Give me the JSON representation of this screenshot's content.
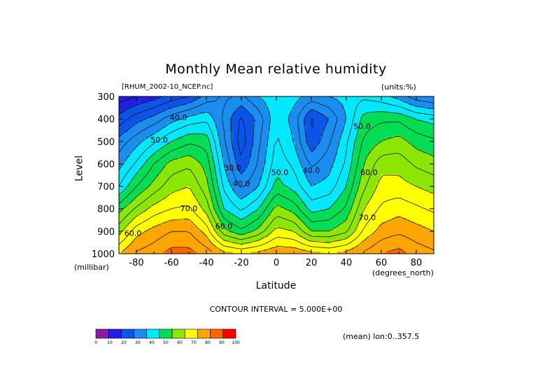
{
  "chart_data": {
    "type": "contour",
    "title": "Monthly Mean relative humidity",
    "dataset": "[RHUM_2002-10_NCEP.nc]",
    "units": "(units:%)",
    "xlabel": "Latitude",
    "x_unit": "(degrees_north)",
    "ylabel": "Level",
    "y_unit": "(millibar)",
    "xlim": [
      -90,
      90
    ],
    "ylim": [
      300,
      1000
    ],
    "y_inverted": true,
    "x_ticks": [
      -80,
      -60,
      -40,
      -20,
      0,
      20,
      40,
      60,
      80
    ],
    "y_ticks": [
      300,
      400,
      500,
      600,
      700,
      800,
      900,
      1000
    ],
    "contour_interval": "CONTOUR INTERVAL = 5.000E+00",
    "contour_labels": [
      {
        "text": "40.0",
        "lat": -56,
        "level": 405
      },
      {
        "text": "50.0",
        "lat": -67,
        "level": 505
      },
      {
        "text": "70.0",
        "lat": -50,
        "level": 810
      },
      {
        "text": "60.0",
        "lat": -82,
        "level": 920
      },
      {
        "text": "60.0",
        "lat": -30,
        "level": 890
      },
      {
        "text": "30.0",
        "lat": -25,
        "level": 630
      },
      {
        "text": "40.0",
        "lat": -20,
        "level": 700
      },
      {
        "text": "50.0",
        "lat": 2,
        "level": 650
      },
      {
        "text": "40.0",
        "lat": 20,
        "level": 640
      },
      {
        "text": "50.0",
        "lat": 49,
        "level": 445
      },
      {
        "text": "60.0",
        "lat": 53,
        "level": 650
      },
      {
        "text": "70.0",
        "lat": 52,
        "level": 850
      }
    ],
    "profile_levels": [
      300,
      400,
      500,
      600,
      700,
      800,
      900,
      1000
    ],
    "profile_latitudes": [
      -90,
      -80,
      -70,
      -60,
      -50,
      -40,
      -30,
      -20,
      -10,
      0,
      10,
      20,
      30,
      40,
      50,
      60,
      70,
      80,
      90
    ],
    "values": [
      [
        12,
        22,
        32,
        38,
        45,
        58,
        68,
        80
      ],
      [
        15,
        28,
        38,
        46,
        55,
        66,
        78,
        86
      ],
      [
        18,
        32,
        44,
        55,
        62,
        72,
        82,
        88
      ],
      [
        22,
        38,
        50,
        62,
        68,
        75,
        85,
        92
      ],
      [
        25,
        42,
        54,
        64,
        70,
        76,
        85,
        92
      ],
      [
        32,
        44,
        53,
        58,
        62,
        68,
        78,
        88
      ],
      [
        36,
        34,
        36,
        40,
        44,
        50,
        62,
        82
      ],
      [
        34,
        24,
        22,
        26,
        34,
        44,
        56,
        80
      ],
      [
        40,
        32,
        34,
        36,
        40,
        50,
        62,
        82
      ],
      [
        44,
        44,
        46,
        48,
        52,
        62,
        72,
        84
      ],
      [
        42,
        38,
        40,
        44,
        48,
        58,
        70,
        84
      ],
      [
        38,
        24,
        26,
        34,
        40,
        48,
        60,
        82
      ],
      [
        40,
        30,
        34,
        38,
        42,
        50,
        60,
        80
      ],
      [
        42,
        40,
        44,
        46,
        50,
        56,
        64,
        82
      ],
      [
        44,
        52,
        56,
        60,
        64,
        70,
        76,
        86
      ],
      [
        42,
        54,
        60,
        68,
        72,
        76,
        82,
        90
      ],
      [
        38,
        54,
        62,
        68,
        72,
        78,
        84,
        92
      ],
      [
        32,
        50,
        58,
        64,
        70,
        76,
        82,
        88
      ],
      [
        30,
        48,
        56,
        62,
        68,
        74,
        80,
        86
      ]
    ],
    "colorbar": {
      "bounds": [
        0,
        10,
        20,
        30,
        40,
        50,
        60,
        70,
        80,
        90,
        100
      ],
      "labels": [
        "0",
        "10",
        "20",
        "30",
        "40",
        "50",
        "60",
        "70",
        "80",
        "90",
        "100"
      ],
      "colors": [
        "#8b1aa8",
        "#1f1fe6",
        "#0a55e8",
        "#1a8ef0",
        "#00e8ff",
        "#00dd55",
        "#8ce600",
        "#ffff00",
        "#ffa500",
        "#ff6400",
        "#ff0000"
      ]
    },
    "mean_note": "(mean) lon:0..357.5"
  }
}
